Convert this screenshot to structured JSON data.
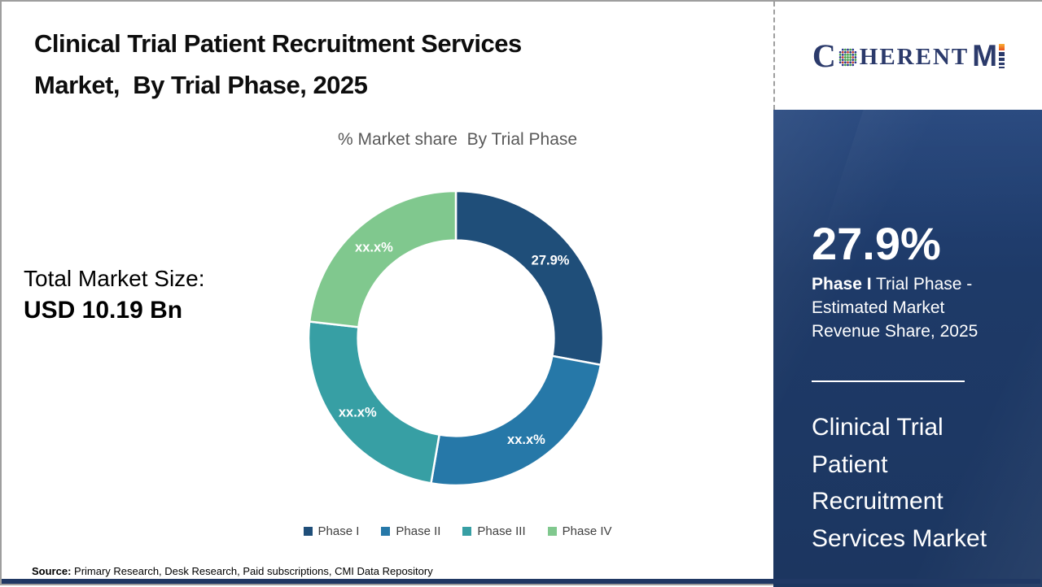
{
  "page": {
    "title": "Clinical Trial Patient Recruitment Services\nMarket,  By Trial Phase, 2025",
    "subtitle": "% Market share  By Trial Phase",
    "total_market": {
      "label": "Total Market Size:",
      "value": "USD 10.19 Bn"
    },
    "source": {
      "label": "Source:",
      "text": " Primary Research, Desk Research, Paid subscriptions, CMI Data Repository"
    }
  },
  "logo": {
    "part_c": "C",
    "part_herent": "HERENT",
    "part_m": "M"
  },
  "chart_data": {
    "type": "pie",
    "variant": "donut",
    "title": "% Market share  By Trial Phase",
    "categories": [
      "Phase I",
      "Phase II",
      "Phase III",
      "Phase IV"
    ],
    "values": [
      27.9,
      24.8,
      24.1,
      23.2
    ],
    "slice_labels": [
      "27.9%",
      "xx.x%",
      "xx.x%",
      "xx.x%"
    ],
    "colors": [
      "#1F4E79",
      "#2678A8",
      "#379FA4",
      "#80C88E"
    ],
    "inner_radius_ratio": 0.665,
    "start_angle_deg": 0,
    "direction": "clockwise",
    "legend_position": "bottom"
  },
  "sidebar": {
    "stat_value": "27.9%",
    "stat_label_bold": "Phase I",
    "stat_label_rest": " Trial Phase - Estimated Market Revenue Share, 2025",
    "panel_title": "Clinical Trial Patient Recruitment Services Market",
    "background_color": "#1E3A68",
    "text_color": "#FFFFFF"
  }
}
